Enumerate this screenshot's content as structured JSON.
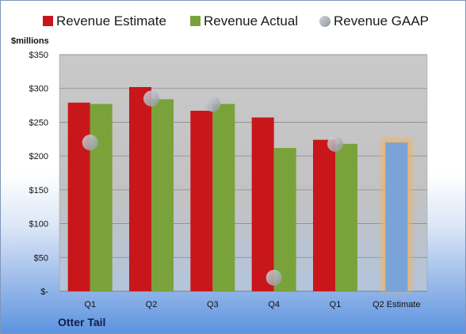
{
  "colors": {
    "estimate": "#c8161b",
    "actual": "#7aa23b",
    "gaap": "#b9bdc4",
    "projected": "#7aa3d8",
    "projected_glow": "#f2b25c"
  },
  "legend": {
    "estimate": "Revenue Estimate",
    "actual": "Revenue Actual",
    "gaap": "Revenue GAAP"
  },
  "unit_label": "$millions",
  "company": "Otter Tail",
  "chart_data": {
    "type": "bar",
    "categories": [
      "Q1",
      "Q2",
      "Q3",
      "Q4",
      "Q1",
      "Q2 Estimate"
    ],
    "series": [
      {
        "name": "Revenue Estimate",
        "values": [
          279,
          302,
          267,
          257,
          224,
          null
        ]
      },
      {
        "name": "Revenue Actual",
        "values": [
          277,
          284,
          277,
          212,
          218,
          220
        ]
      },
      {
        "name": "Revenue GAAP",
        "type": "scatter",
        "values": [
          220,
          285,
          277,
          20,
          218,
          null
        ]
      }
    ],
    "y_ticks": [
      "$-",
      "$50",
      "$100",
      "$150",
      "$200",
      "$250",
      "$300",
      "$350"
    ],
    "ylim": [
      0,
      350
    ],
    "grid": true,
    "legend_position": "top"
  }
}
